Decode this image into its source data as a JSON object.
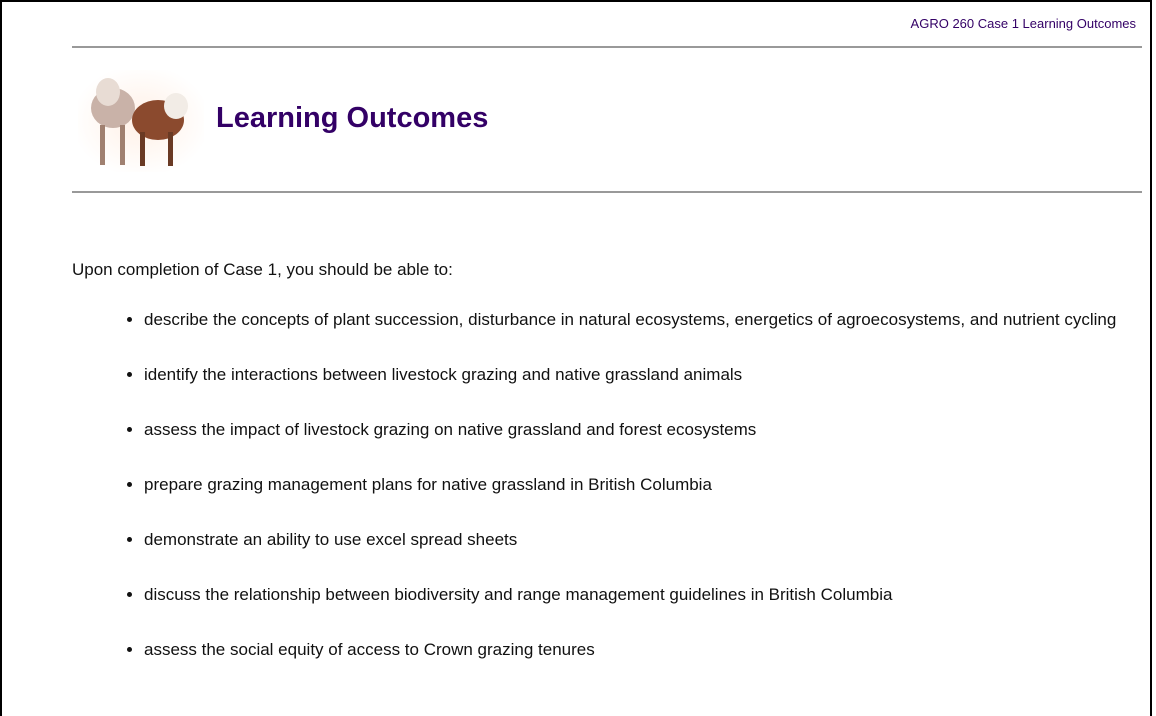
{
  "header": {
    "breadcrumb": "AGRO 260 Case 1 Learning Outcomes",
    "title": "Learning Outcomes"
  },
  "intro": "Upon completion of Case 1, you should be able to:",
  "outcomes": [
    "describe the concepts of plant succession, disturbance in natural ecosystems, energetics of agroecosystems, and nutrient cycling",
    "identify the interactions between livestock grazing and native grassland animals",
    "assess the impact of livestock grazing on native grassland and forest ecosystems",
    "prepare grazing management plans for native grassland in British Columbia",
    "demonstrate an ability to use excel spread sheets",
    "discuss the relationship between biodiversity and range management guidelines in British Columbia",
    "assess the social equity of access to Crown grazing tenures"
  ]
}
